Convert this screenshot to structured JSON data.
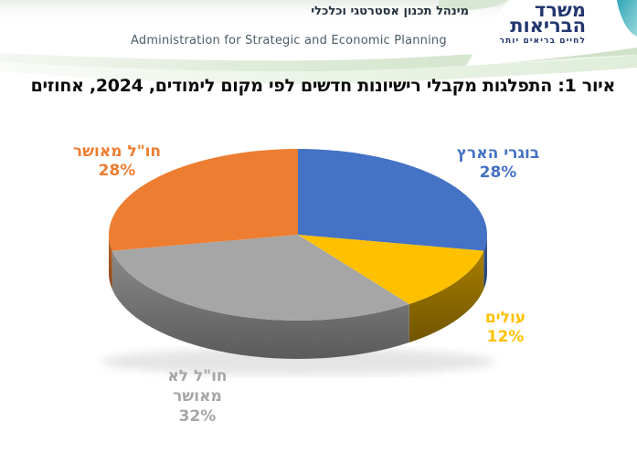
{
  "header": {
    "dept_name_he": "מינהל תכנון אסטרטגי וכלכלי",
    "dept_name_en": "Administration for Strategic and Economic Planning",
    "logo": {
      "line1": "משרד",
      "line2": "הבריאות",
      "tagline": "לחיים בריאים יותר",
      "color": "#23366E"
    },
    "accent_teal": "#2FA7B8",
    "accent_green": "#CFE2C8"
  },
  "title": "איור 1: התפלגות מקבלי רישיונות חדשים לפי מקום לימודים, 2024, אחוזים",
  "chart_data": {
    "type": "pie",
    "style": "3d",
    "start_angle_deg": 0,
    "direction": "clockwise",
    "unit": "percent",
    "legend": "none",
    "data_labels": "category name + percent, outside",
    "slices": [
      {
        "label": "בוגרי הארץ",
        "value": 28,
        "pct_text": "28%",
        "color": "#4472C4",
        "side_color": "#2E4E86"
      },
      {
        "label": "עולים",
        "value": 12,
        "pct_text": "12%",
        "color": "#FFC000",
        "side_color": "#8F6C00"
      },
      {
        "label": "חו\"ל לא מאושר",
        "value": 32,
        "pct_text": "32%",
        "color": "#A6A6A6",
        "side_color": "#757575"
      },
      {
        "label": "חו\"ל מאושר",
        "value": 28,
        "pct_text": "28%",
        "color": "#ED7D31",
        "side_color": "#A5571F"
      }
    ]
  }
}
